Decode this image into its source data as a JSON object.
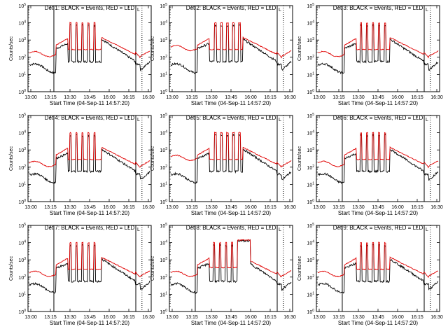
{
  "figure": {
    "y_label": "Counts/sec",
    "x_label": "Start Time (04-Sep-11 14:57:20)",
    "x_tick_labels": [
      "13:00",
      "13:15",
      "13:30",
      "13:45",
      "16:00",
      "16:15",
      "16:30"
    ],
    "y_tick_labels": [
      "10^0",
      "10^1",
      "10^2",
      "10^3",
      "10^4",
      "10^5"
    ],
    "marker_label": "L"
  },
  "chart_data": [
    {
      "type": "line",
      "title": "Det 1: BLACK = Events, RED = LLD",
      "variant": "A",
      "yscale": "log",
      "ylim": [
        1,
        100000
      ],
      "series": [
        {
          "color": "#000000"
        },
        {
          "color": "#e00000"
        }
      ]
    },
    {
      "type": "line",
      "title": "Det 2: BLACK = Events, RED = LLD",
      "variant": "B",
      "yscale": "log",
      "ylim": [
        1,
        100000
      ],
      "series": [
        {
          "color": "#000000"
        },
        {
          "color": "#e00000"
        }
      ]
    },
    {
      "type": "line",
      "title": "Det 3: BLACK = Events, RED = LLD",
      "variant": "C",
      "yscale": "log",
      "ylim": [
        1,
        100000
      ],
      "series": [
        {
          "color": "#000000"
        },
        {
          "color": "#e00000"
        }
      ]
    },
    {
      "type": "line",
      "title": "Det 4: BLACK = Events, RED = LLD",
      "variant": "A",
      "yscale": "log",
      "ylim": [
        1,
        100000
      ],
      "series": [
        {
          "color": "#000000"
        },
        {
          "color": "#e00000"
        }
      ]
    },
    {
      "type": "line",
      "title": "Det 5: BLACK = Events, RED = LLD",
      "variant": "B",
      "yscale": "log",
      "ylim": [
        1,
        100000
      ],
      "series": [
        {
          "color": "#000000"
        },
        {
          "color": "#e00000"
        }
      ]
    },
    {
      "type": "line",
      "title": "Det 6: BLACK = Events, RED = LLD",
      "variant": "C",
      "yscale": "log",
      "ylim": [
        1,
        100000
      ],
      "series": [
        {
          "color": "#000000"
        },
        {
          "color": "#e00000"
        }
      ]
    },
    {
      "type": "line",
      "title": "Det 7: BLACK = Events, RED = LLD",
      "variant": "A",
      "yscale": "log",
      "ylim": [
        1,
        100000
      ],
      "series": [
        {
          "color": "#000000"
        },
        {
          "color": "#e00000"
        }
      ]
    },
    {
      "type": "line",
      "title": "Det 8: BLACK = Events, RED = LLD",
      "variant": "D",
      "yscale": "log",
      "ylim": [
        1,
        100000
      ],
      "series": [
        {
          "color": "#000000"
        },
        {
          "color": "#e00000"
        }
      ]
    },
    {
      "type": "line",
      "title": "Det 9: BLACK = Events, RED = LLD",
      "variant": "C",
      "yscale": "log",
      "ylim": [
        1,
        100000
      ],
      "series": [
        {
          "color": "#000000"
        },
        {
          "color": "#e00000"
        }
      ]
    }
  ]
}
